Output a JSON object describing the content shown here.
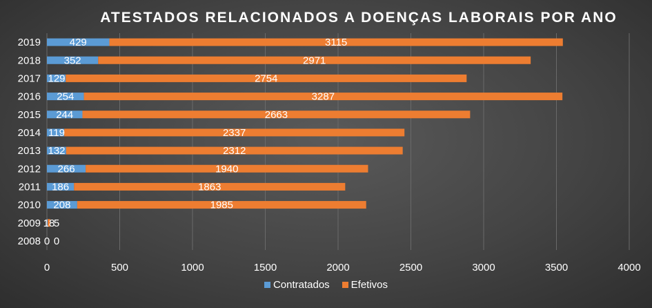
{
  "chart_data": {
    "type": "bar",
    "orientation": "horizontal",
    "stacked": true,
    "title": "ATESTADOS RELACIONADOS A DOENÇAS LABORAIS POR ANO",
    "categories": [
      "2008",
      "2009",
      "2010",
      "2011",
      "2012",
      "2013",
      "2014",
      "2015",
      "2016",
      "2017",
      "2018",
      "2019"
    ],
    "series": [
      {
        "name": "Contratados",
        "color": "#5b9bd5",
        "values": [
          0,
          5,
          208,
          186,
          266,
          132,
          119,
          244,
          254,
          129,
          352,
          429
        ]
      },
      {
        "name": "Efetivos",
        "color": "#ed7d31",
        "values": [
          0,
          18,
          1985,
          1863,
          1940,
          2312,
          2337,
          2663,
          3287,
          2754,
          2971,
          3115
        ]
      }
    ],
    "xlim": [
      0,
      4000
    ],
    "xticks": [
      0,
      500,
      1000,
      1500,
      2000,
      2500,
      3000,
      3500,
      4000
    ],
    "grid": true,
    "legend_position": "bottom"
  }
}
